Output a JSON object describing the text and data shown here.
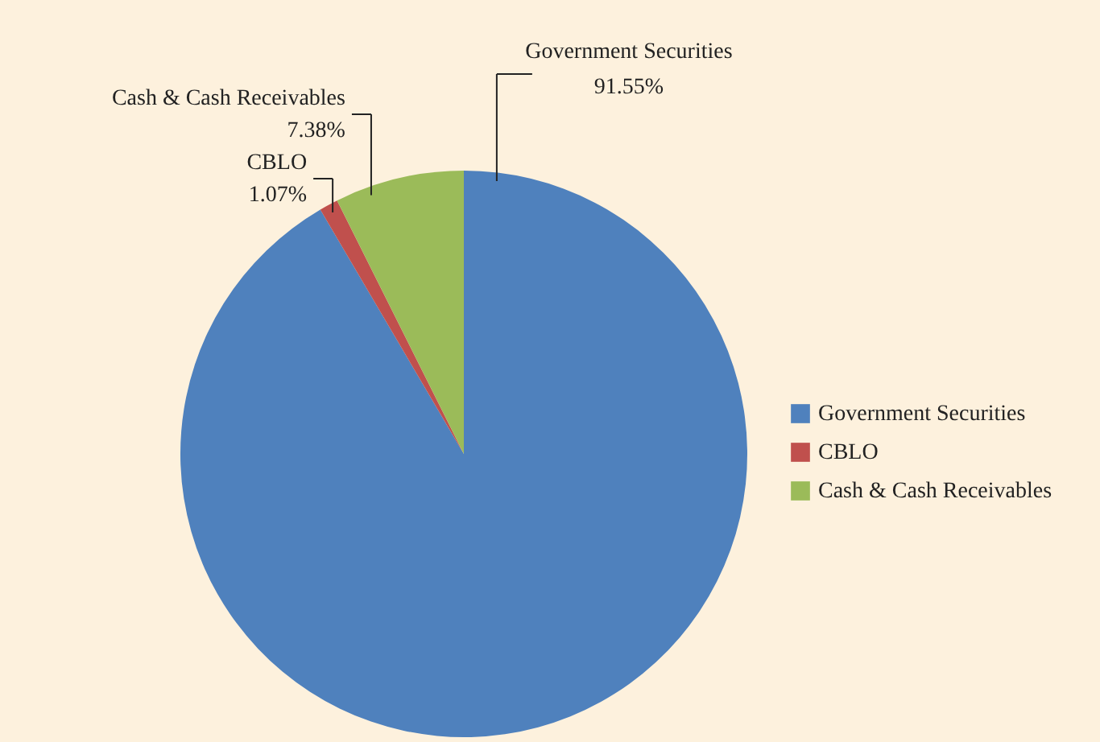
{
  "chart_data": {
    "type": "pie",
    "categories": [
      "Government Securities",
      "CBLO",
      "Cash & Cash Receivables"
    ],
    "values": [
      91.55,
      1.07,
      7.38
    ],
    "colors": [
      "#4f81bd",
      "#c0504d",
      "#9bbb59"
    ],
    "value_labels": [
      "91.55%",
      "1.07%",
      "7.38%"
    ],
    "legend": "right"
  }
}
